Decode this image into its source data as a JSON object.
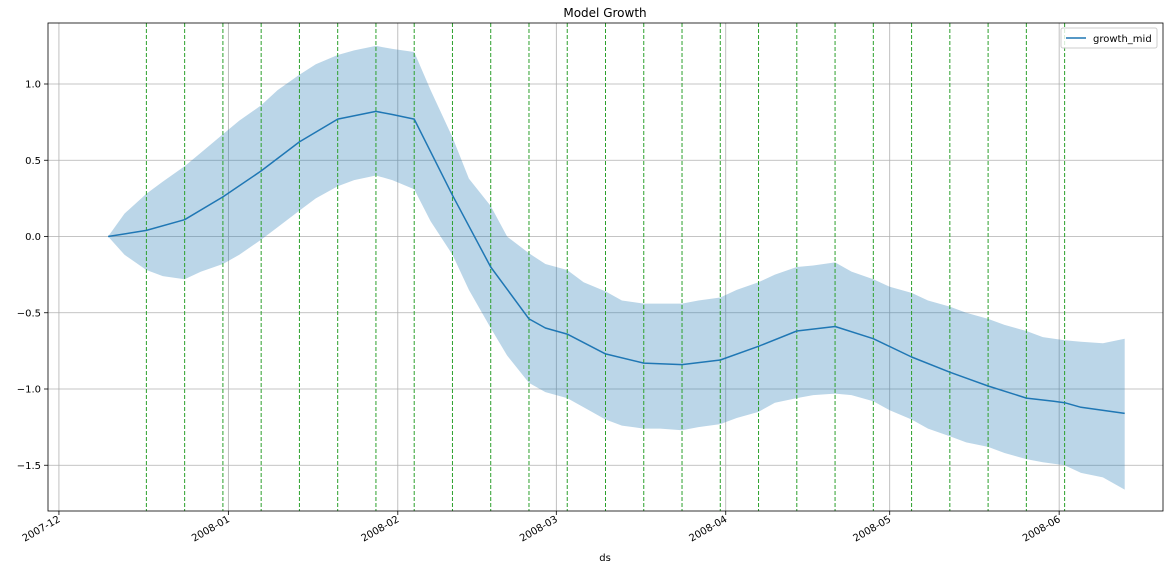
{
  "chart_data": {
    "type": "line",
    "title": "Model Growth",
    "xlabel": "ds",
    "ylabel": "",
    "x_range": [
      "2007-11-29",
      "2008-06-20"
    ],
    "ylim": [
      -1.8,
      1.4
    ],
    "x_ticks": [
      {
        "date": "2007-12-01",
        "label": "2007-12"
      },
      {
        "date": "2008-01-01",
        "label": "2008-01"
      },
      {
        "date": "2008-02-01",
        "label": "2008-02"
      },
      {
        "date": "2008-03-01",
        "label": "2008-03"
      },
      {
        "date": "2008-04-01",
        "label": "2008-04"
      },
      {
        "date": "2008-05-01",
        "label": "2008-05"
      },
      {
        "date": "2008-06-01",
        "label": "2008-06"
      }
    ],
    "y_ticks": [
      {
        "value": 1.0,
        "label": "1.0"
      },
      {
        "value": 0.5,
        "label": "0.5"
      },
      {
        "value": 0.0,
        "label": "0.0"
      },
      {
        "value": -0.5,
        "label": "−0.5"
      },
      {
        "value": -1.0,
        "label": "−1.0"
      },
      {
        "value": -1.5,
        "label": "−1.5"
      }
    ],
    "grid": true,
    "legend": {
      "position": "top-right",
      "entries": [
        "growth_mid"
      ]
    },
    "series": [
      {
        "name": "growth_mid",
        "color": "#1f77b4",
        "x": [
          "2007-12-10",
          "2007-12-17",
          "2007-12-24",
          "2007-12-31",
          "2008-01-07",
          "2008-01-14",
          "2008-01-21",
          "2008-01-28",
          "2008-01-31",
          "2008-02-04",
          "2008-02-11",
          "2008-02-18",
          "2008-02-25",
          "2008-02-28",
          "2008-03-03",
          "2008-03-10",
          "2008-03-17",
          "2008-03-24",
          "2008-03-31",
          "2008-04-07",
          "2008-04-14",
          "2008-04-21",
          "2008-04-28",
          "2008-05-05",
          "2008-05-12",
          "2008-05-19",
          "2008-05-26",
          "2008-05-31",
          "2008-06-02",
          "2008-06-05",
          "2008-06-13"
        ],
        "y": [
          0.0,
          0.04,
          0.11,
          0.26,
          0.43,
          0.62,
          0.77,
          0.82,
          0.8,
          0.77,
          0.27,
          -0.2,
          -0.54,
          -0.6,
          -0.64,
          -0.77,
          -0.83,
          -0.84,
          -0.81,
          -0.72,
          -0.62,
          -0.59,
          -0.67,
          -0.79,
          -0.89,
          -0.98,
          -1.06,
          -1.08,
          -1.09,
          -1.12,
          -1.16
        ]
      }
    ],
    "band": {
      "color": "#1f77b4",
      "opacity": 0.3,
      "x": [
        "2007-12-10",
        "2007-12-13",
        "2007-12-17",
        "2007-12-20",
        "2007-12-24",
        "2007-12-27",
        "2007-12-31",
        "2008-01-03",
        "2008-01-07",
        "2008-01-10",
        "2008-01-14",
        "2008-01-17",
        "2008-01-21",
        "2008-01-24",
        "2008-01-28",
        "2008-01-31",
        "2008-02-04",
        "2008-02-07",
        "2008-02-11",
        "2008-02-14",
        "2008-02-18",
        "2008-02-21",
        "2008-02-25",
        "2008-02-28",
        "2008-03-03",
        "2008-03-06",
        "2008-03-10",
        "2008-03-13",
        "2008-03-17",
        "2008-03-20",
        "2008-03-24",
        "2008-03-27",
        "2008-03-31",
        "2008-04-03",
        "2008-04-07",
        "2008-04-10",
        "2008-04-14",
        "2008-04-17",
        "2008-04-21",
        "2008-04-24",
        "2008-04-28",
        "2008-05-01",
        "2008-05-05",
        "2008-05-08",
        "2008-05-12",
        "2008-05-15",
        "2008-05-19",
        "2008-05-22",
        "2008-05-26",
        "2008-05-29",
        "2008-06-02",
        "2008-06-05",
        "2008-06-09",
        "2008-06-13"
      ],
      "upper": [
        0.0,
        0.15,
        0.28,
        0.36,
        0.46,
        0.55,
        0.67,
        0.76,
        0.86,
        0.96,
        1.06,
        1.13,
        1.19,
        1.22,
        1.25,
        1.23,
        1.21,
        0.96,
        0.65,
        0.38,
        0.2,
        0.0,
        -0.11,
        -0.18,
        -0.22,
        -0.3,
        -0.36,
        -0.42,
        -0.44,
        -0.44,
        -0.44,
        -0.42,
        -0.4,
        -0.35,
        -0.3,
        -0.25,
        -0.2,
        -0.19,
        -0.17,
        -0.23,
        -0.28,
        -0.33,
        -0.37,
        -0.42,
        -0.46,
        -0.5,
        -0.54,
        -0.58,
        -0.62,
        -0.66,
        -0.68,
        -0.69,
        -0.7,
        -0.67
      ],
      "lower": [
        0.0,
        -0.12,
        -0.22,
        -0.26,
        -0.28,
        -0.23,
        -0.18,
        -0.12,
        -0.02,
        0.06,
        0.17,
        0.25,
        0.33,
        0.37,
        0.4,
        0.37,
        0.31,
        0.1,
        -0.12,
        -0.35,
        -0.6,
        -0.78,
        -0.96,
        -1.02,
        -1.06,
        -1.12,
        -1.2,
        -1.24,
        -1.26,
        -1.26,
        -1.27,
        -1.25,
        -1.23,
        -1.19,
        -1.15,
        -1.09,
        -1.06,
        -1.04,
        -1.03,
        -1.04,
        -1.08,
        -1.14,
        -1.2,
        -1.26,
        -1.31,
        -1.35,
        -1.38,
        -1.42,
        -1.46,
        -1.48,
        -1.5,
        -1.55,
        -1.58,
        -1.66
      ]
    },
    "changepoints": {
      "color": "#2ca02c",
      "style": "dashed",
      "dates": [
        "2007-12-17",
        "2007-12-24",
        "2007-12-31",
        "2008-01-07",
        "2008-01-14",
        "2008-01-21",
        "2008-01-28",
        "2008-02-04",
        "2008-02-11",
        "2008-02-18",
        "2008-02-25",
        "2008-03-03",
        "2008-03-10",
        "2008-03-17",
        "2008-03-24",
        "2008-03-31",
        "2008-04-07",
        "2008-04-14",
        "2008-04-21",
        "2008-04-28",
        "2008-05-05",
        "2008-05-12",
        "2008-05-19",
        "2008-05-26",
        "2008-06-02"
      ]
    }
  }
}
